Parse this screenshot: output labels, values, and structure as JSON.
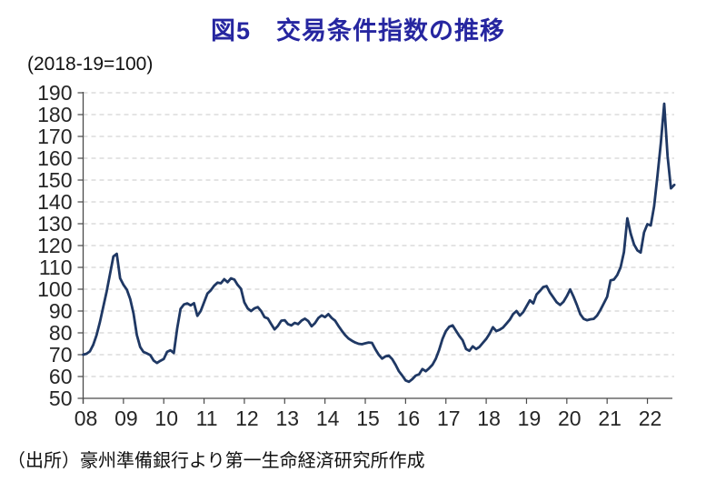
{
  "page": {
    "title": "図5　交易条件指数の推移",
    "unit_label": "(2018-19=100)",
    "source": "（出所）豪州準備銀行より第一生命経済研究所作成"
  },
  "colors": {
    "title_text": "#2626a0",
    "line": "#1f3864",
    "axis": "#4a4a4a",
    "grid": "#c9c9c9",
    "tick_text": "#262626"
  },
  "chart_data": {
    "type": "line",
    "title": "図5　交易条件指数の推移",
    "unit": "(2018-19=100)",
    "xlabel": "",
    "ylabel": "",
    "ylim": [
      50,
      190
    ],
    "y_ticks": [
      190,
      180,
      170,
      160,
      150,
      140,
      130,
      120,
      110,
      100,
      90,
      80,
      70,
      60,
      50
    ],
    "x_tick_labels": [
      "08",
      "09",
      "10",
      "11",
      "12",
      "13",
      "14",
      "15",
      "16",
      "17",
      "18",
      "19",
      "20",
      "21",
      "22"
    ],
    "grid": "horizontal-dashed",
    "legend": "none",
    "frequency": "monthly",
    "start": "2008-01",
    "end": "2022-09",
    "series_name": "交易条件指数",
    "values": [
      70.0,
      70.4,
      71.5,
      74.5,
      79.0,
      85.0,
      92.0,
      99.0,
      107.0,
      115.0,
      116.2,
      105.0,
      102.0,
      99.8,
      95.5,
      89.0,
      79.0,
      73.5,
      71.2,
      70.6,
      69.8,
      67.3,
      66.2,
      67.2,
      68.0,
      71.3,
      72.0,
      70.8,
      82.0,
      91.0,
      93.0,
      93.5,
      92.6,
      93.6,
      87.8,
      90.0,
      94.0,
      98.0,
      99.5,
      101.6,
      103.0,
      102.7,
      104.6,
      103.2,
      105.0,
      104.4,
      102.0,
      100.2,
      94.0,
      91.2,
      90.0,
      91.2,
      91.8,
      90.0,
      87.2,
      86.6,
      84.0,
      81.6,
      83.2,
      85.6,
      85.8,
      84.0,
      83.4,
      84.6,
      84.0,
      85.6,
      86.5,
      85.4,
      83.0,
      84.4,
      86.8,
      88.0,
      87.2,
      88.6,
      86.8,
      85.6,
      83.2,
      81.0,
      79.0,
      77.4,
      76.4,
      75.6,
      75.0,
      74.8,
      75.2,
      75.6,
      75.4,
      72.5,
      70.0,
      68.2,
      69.2,
      69.6,
      68.0,
      65.4,
      62.4,
      60.4,
      58.2,
      57.6,
      58.8,
      60.4,
      61.0,
      63.4,
      62.4,
      63.8,
      65.4,
      68.2,
      72.2,
      77.2,
      80.8,
      82.8,
      83.4,
      81.0,
      78.6,
      76.6,
      72.6,
      71.8,
      73.8,
      72.6,
      73.6,
      75.4,
      77.2,
      79.6,
      82.6,
      80.8,
      81.4,
      82.4,
      84.2,
      86.0,
      88.6,
      90.0,
      87.9,
      89.5,
      92.2,
      94.9,
      93.5,
      97.6,
      99.2,
      101.0,
      101.4,
      98.4,
      96.2,
      94.0,
      92.8,
      94.2,
      96.8,
      99.9,
      96.6,
      92.8,
      88.6,
      86.4,
      85.8,
      86.2,
      86.4,
      87.9,
      90.5,
      93.5,
      96.5,
      104.0,
      104.4,
      106.5,
      110.0,
      117.0,
      132.5,
      125.5,
      120.5,
      117.8,
      116.8,
      126.0,
      129.8,
      129.2,
      138.0,
      152.0,
      167.0,
      185.0,
      161.0,
      146.2,
      147.8
    ]
  }
}
